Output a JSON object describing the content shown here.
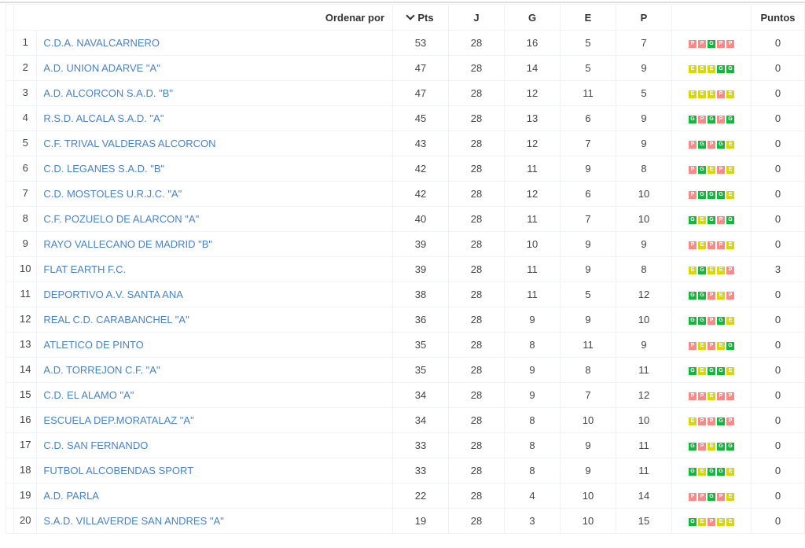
{
  "header": {
    "order_by": "Ordenar por",
    "pts": "Pts",
    "j": "J",
    "g": "G",
    "e": "E",
    "p": "P",
    "form": "",
    "puntos": "Puntos"
  },
  "form_colors": {
    "P": "#f88a88",
    "G": "#12b83c",
    "E": "#d9d900"
  },
  "teams": [
    {
      "rank": "1",
      "name": "C.D.A. NAVALCARNERO",
      "pts": "53",
      "j": "28",
      "g": "16",
      "e": "5",
      "p": "7",
      "form": "PPGPP",
      "puntos": "0"
    },
    {
      "rank": "2",
      "name": "A.D. UNION ADARVE \"A\"",
      "pts": "47",
      "j": "28",
      "g": "14",
      "e": "5",
      "p": "9",
      "form": "EEEGG",
      "puntos": "0"
    },
    {
      "rank": "3",
      "name": "A.D. ALCORCON S.A.D. \"B\"",
      "pts": "47",
      "j": "28",
      "g": "12",
      "e": "11",
      "p": "5",
      "form": "EEEPE",
      "puntos": "0"
    },
    {
      "rank": "4",
      "name": "R.S.D. ALCALA S.A.D. \"A\"",
      "pts": "45",
      "j": "28",
      "g": "13",
      "e": "6",
      "p": "9",
      "form": "GPGPG",
      "puntos": "0"
    },
    {
      "rank": "5",
      "name": "C.F. TRIVAL VALDERAS ALCORCON",
      "pts": "43",
      "j": "28",
      "g": "12",
      "e": "7",
      "p": "9",
      "form": "PGPGE",
      "puntos": "0"
    },
    {
      "rank": "6",
      "name": "C.D. LEGANES S.A.D. \"B\"",
      "pts": "42",
      "j": "28",
      "g": "11",
      "e": "9",
      "p": "8",
      "form": "PGEPE",
      "puntos": "0"
    },
    {
      "rank": "7",
      "name": "C.D. MOSTOLES U.R.J.C. \"A\"",
      "pts": "42",
      "j": "28",
      "g": "12",
      "e": "6",
      "p": "10",
      "form": "PGGGE",
      "puntos": "0"
    },
    {
      "rank": "8",
      "name": "C.F. POZUELO DE ALARCON \"A\"",
      "pts": "40",
      "j": "28",
      "g": "11",
      "e": "7",
      "p": "10",
      "form": "GEGPG",
      "puntos": "0"
    },
    {
      "rank": "9",
      "name": "RAYO VALLECANO DE MADRID \"B\"",
      "pts": "39",
      "j": "28",
      "g": "10",
      "e": "9",
      "p": "9",
      "form": "PEPPE",
      "puntos": "0"
    },
    {
      "rank": "10",
      "name": "FLAT EARTH F.C.",
      "pts": "39",
      "j": "28",
      "g": "11",
      "e": "9",
      "p": "8",
      "form": "EGEEP",
      "puntos": "3"
    },
    {
      "rank": "11",
      "name": "DEPORTIVO A.V. SANTA ANA",
      "pts": "38",
      "j": "28",
      "g": "11",
      "e": "5",
      "p": "12",
      "form": "GGPEP",
      "puntos": "0"
    },
    {
      "rank": "12",
      "name": "REAL C.D. CARABANCHEL \"A\"",
      "pts": "36",
      "j": "28",
      "g": "9",
      "e": "9",
      "p": "10",
      "form": "GGPGE",
      "puntos": "0"
    },
    {
      "rank": "13",
      "name": "ATLETICO DE PINTO",
      "pts": "35",
      "j": "28",
      "g": "8",
      "e": "11",
      "p": "9",
      "form": "PEPEG",
      "puntos": "0"
    },
    {
      "rank": "14",
      "name": "A.D. TORREJON C.F. \"A\"",
      "pts": "35",
      "j": "28",
      "g": "9",
      "e": "8",
      "p": "11",
      "form": "GEGGE",
      "puntos": "0"
    },
    {
      "rank": "15",
      "name": "C.D. EL ALAMO \"A\"",
      "pts": "34",
      "j": "28",
      "g": "9",
      "e": "7",
      "p": "12",
      "form": "PPEPP",
      "puntos": "0"
    },
    {
      "rank": "16",
      "name": "ESCUELA DEP.MORATALAZ \"A\"",
      "pts": "34",
      "j": "28",
      "g": "8",
      "e": "10",
      "p": "10",
      "form": "EPPGP",
      "puntos": "0"
    },
    {
      "rank": "17",
      "name": "C.D. SAN FERNANDO",
      "pts": "33",
      "j": "28",
      "g": "8",
      "e": "9",
      "p": "11",
      "form": "GPEGG",
      "puntos": "0"
    },
    {
      "rank": "18",
      "name": "FUTBOL ALCOBENDAS SPORT",
      "pts": "33",
      "j": "28",
      "g": "8",
      "e": "9",
      "p": "11",
      "form": "GEGGE",
      "puntos": "0"
    },
    {
      "rank": "19",
      "name": "A.D. PARLA",
      "pts": "22",
      "j": "28",
      "g": "4",
      "e": "10",
      "p": "14",
      "form": "PPGPE",
      "puntos": "0"
    },
    {
      "rank": "20",
      "name": "S.A.D. VILLAVERDE SAN ANDRES \"A\"",
      "pts": "19",
      "j": "28",
      "g": "3",
      "e": "10",
      "p": "15",
      "form": "GEPEE",
      "puntos": "0"
    }
  ]
}
